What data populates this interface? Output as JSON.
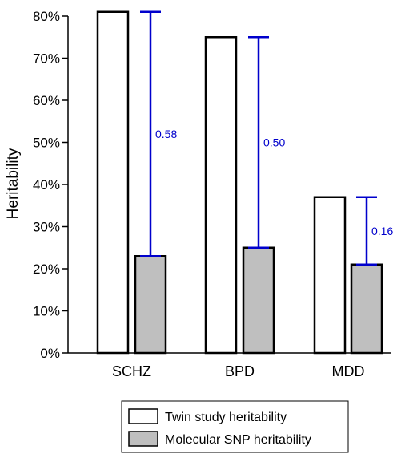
{
  "chart_data": {
    "type": "bar",
    "title": "",
    "xlabel": "",
    "ylabel": "Heritability",
    "ylim": [
      0,
      80
    ],
    "y_tick_labels": [
      "0%",
      "10%",
      "20%",
      "30%",
      "40%",
      "50%",
      "60%",
      "70%",
      "80%"
    ],
    "grid": false,
    "categories": [
      "SCHZ",
      "BPD",
      "MDD"
    ],
    "series": [
      {
        "name": "Twin study heritability",
        "values": [
          81,
          75,
          37
        ],
        "color": "#ffffff"
      },
      {
        "name": "Molecular SNP heritability",
        "values": [
          23,
          25,
          21
        ],
        "color": "#bfbfbf"
      }
    ],
    "gap_annotations": [
      {
        "category": "SCHZ",
        "from": 23,
        "to": 81,
        "label": "0.58"
      },
      {
        "category": "BPD",
        "from": 25,
        "to": 75,
        "label": "0.50"
      },
      {
        "category": "MDD",
        "from": 21,
        "to": 37,
        "label": "0.16"
      }
    ],
    "gap_color": "#0000cc",
    "legend_position": "bottom"
  }
}
